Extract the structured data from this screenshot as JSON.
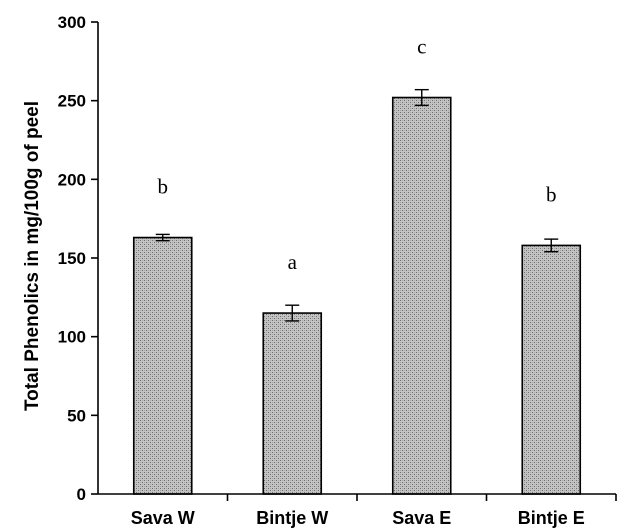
{
  "chart_data": {
    "type": "bar",
    "categories": [
      "Sava W",
      "Bintje W",
      "Sava E",
      "Bintje E"
    ],
    "values": [
      163,
      115,
      252,
      158
    ],
    "errors": [
      2,
      5,
      5,
      4
    ],
    "significance_letters": [
      "b",
      "a",
      "c",
      "b"
    ],
    "title": "",
    "xlabel": "",
    "ylabel": "Total Phenolics in mg/100g of peel",
    "ylim": [
      0,
      300
    ],
    "yticks": [
      0,
      50,
      100,
      150,
      200,
      250,
      300
    ],
    "ytick_labels": [
      "0",
      "50",
      "100",
      "150",
      "200",
      "250",
      "300"
    ],
    "grid": false,
    "legend": "none",
    "bar_fill": "#b8b8b8",
    "bar_edge": "#000000"
  }
}
